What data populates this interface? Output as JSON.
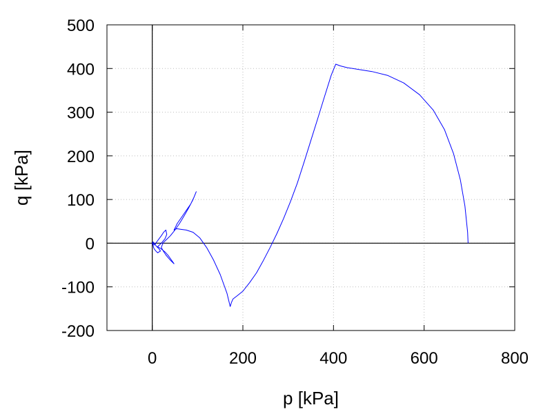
{
  "chart_data": {
    "type": "line",
    "title": "",
    "xlabel": "p [kPa]",
    "ylabel": "q [kPa]",
    "xlim": [
      -100,
      800
    ],
    "ylim": [
      -200,
      500
    ],
    "xticks": [
      0,
      200,
      400,
      600,
      800
    ],
    "yticks": [
      -200,
      -100,
      0,
      100,
      200,
      300,
      400,
      500
    ],
    "xtick_labels": [
      "0",
      "200",
      "400",
      "600",
      "800"
    ],
    "ytick_labels": [
      "-200",
      "-100",
      "0",
      "100",
      "200",
      "300",
      "400",
      "500"
    ],
    "grid": true,
    "zero_lines": true,
    "series": [
      {
        "color": "#0000ff",
        "x": [
          697,
          696,
          690,
          680,
          665,
          645,
          620,
          590,
          555,
          520,
          485,
          455,
          430,
          415,
          405,
          395,
          380,
          365,
          350,
          335,
          320,
          305,
          290,
          275,
          260,
          245,
          230,
          215,
          200,
          188,
          178,
          175,
          172,
          165,
          150,
          135,
          120,
          105,
          90,
          75,
          62,
          55,
          50,
          48,
          50,
          55,
          65,
          75,
          85,
          92,
          97,
          90,
          80,
          70,
          60,
          50,
          40,
          30,
          25,
          22,
          20,
          25,
          30,
          35,
          40,
          45,
          48,
          42,
          35,
          28,
          22,
          18,
          15,
          12,
          20,
          28,
          32,
          30,
          25,
          20,
          15,
          10,
          6,
          10,
          15,
          18,
          15,
          12,
          8,
          5,
          3,
          2,
          0,
          2,
          4,
          6,
          4,
          2,
          0
        ],
        "y": [
          0,
          25,
          85,
          145,
          205,
          260,
          305,
          340,
          367,
          384,
          393,
          398,
          402,
          406,
          410,
          385,
          335,
          285,
          235,
          185,
          137,
          95,
          57,
          22,
          -10,
          -40,
          -68,
          -90,
          -110,
          -120,
          -128,
          -135,
          -145,
          -115,
          -72,
          -38,
          -10,
          12,
          25,
          30,
          32,
          33,
          32,
          30,
          34,
          45,
          60,
          75,
          90,
          105,
          118,
          100,
          80,
          62,
          45,
          30,
          17,
          7,
          2,
          -4,
          -10,
          -19,
          -27,
          -33,
          -39,
          -44,
          -47,
          -38,
          -28,
          -20,
          -15,
          -12,
          -10,
          -8,
          0,
          10,
          20,
          30,
          25,
          17,
          10,
          3,
          -3,
          -8,
          -13,
          -18,
          -20,
          -22,
          -18,
          -14,
          -10,
          -5,
          0,
          3,
          0,
          -3,
          -4,
          -1,
          0
        ]
      }
    ]
  }
}
